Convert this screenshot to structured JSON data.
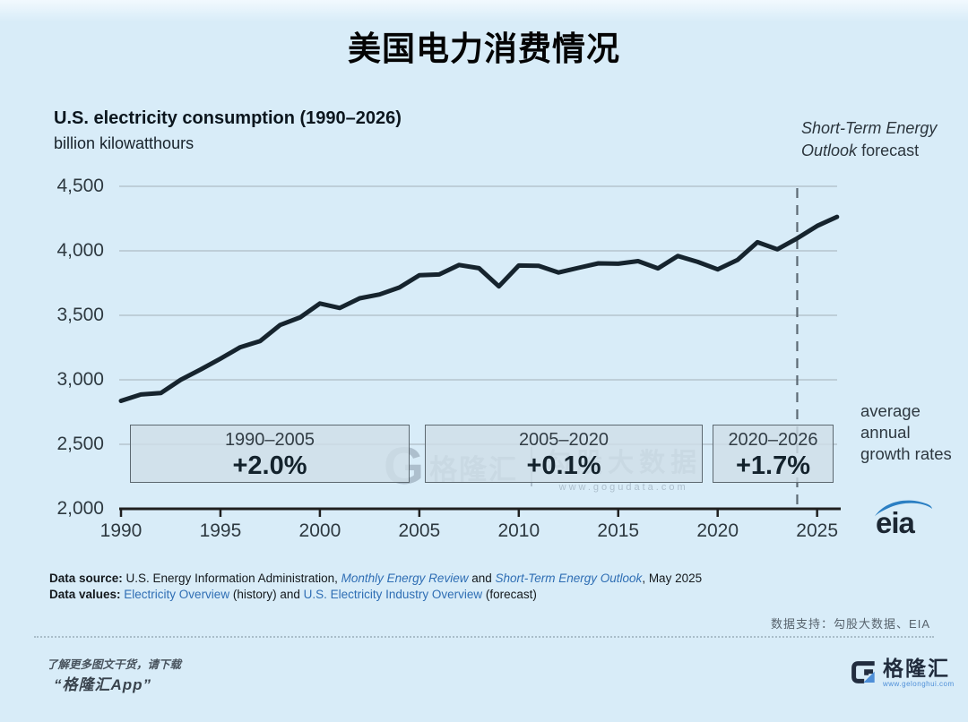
{
  "page": {
    "title": "美国电力消费情况",
    "bg_color": "#d8ecf8"
  },
  "chart": {
    "title": "U.S. electricity consumption (1990–2026)",
    "subtitle": "billion kilowatthours",
    "forecast_note_italic": "Short-Term Energy Outlook",
    "forecast_note_plain": "forecast",
    "avg_growth_note": "average annual growth rates",
    "y_ticks": [
      "4,500",
      "4,000",
      "3,500",
      "3,000",
      "2,500",
      "2,000"
    ],
    "x_ticks": [
      "1990",
      "1995",
      "2000",
      "2005",
      "2010",
      "2015",
      "2020",
      "2025"
    ],
    "growth_boxes": [
      {
        "range": "1990–2005",
        "rate": "+2.0%"
      },
      {
        "range": "2005–2020",
        "rate": "+0.1%"
      },
      {
        "range": "2020–2026",
        "rate": "+1.7%"
      }
    ],
    "line_color": "#16242e",
    "grid_color": "#b6c4cd",
    "axis_color": "#1f1f1f",
    "dash_color": "#5d6a74"
  },
  "chart_data": {
    "type": "line",
    "title": "U.S. electricity consumption (1990–2026)",
    "ylabel": "billion kilowatthours",
    "x": [
      1990,
      1991,
      1992,
      1993,
      1994,
      1995,
      1996,
      1997,
      1998,
      1999,
      2000,
      2001,
      2002,
      2003,
      2004,
      2005,
      2006,
      2007,
      2008,
      2009,
      2010,
      2011,
      2012,
      2013,
      2014,
      2015,
      2016,
      2017,
      2018,
      2019,
      2020,
      2021,
      2022,
      2023,
      2024,
      2025,
      2026
    ],
    "values": [
      2837,
      2886,
      2897,
      3000,
      3080,
      3164,
      3253,
      3301,
      3425,
      3483,
      3592,
      3557,
      3632,
      3662,
      3716,
      3811,
      3817,
      3890,
      3865,
      3724,
      3886,
      3883,
      3832,
      3868,
      3903,
      3900,
      3920,
      3864,
      3960,
      3914,
      3856,
      3930,
      4067,
      4012,
      4097,
      4193,
      4263
    ],
    "forecast_start_year": 2024,
    "forecast_source": "Short-Term Energy Outlook forecast",
    "ylim": [
      2000,
      4500
    ],
    "xlim": [
      1990,
      2026
    ],
    "y_tick_step": 500,
    "x_tick_step": 5,
    "grid": true,
    "legend": "none",
    "annotations": [
      {
        "range": "1990–2005",
        "avg_annual_growth": "+2.0%"
      },
      {
        "range": "2005–2020",
        "avg_annual_growth": "+0.1%"
      },
      {
        "range": "2020–2026",
        "avg_annual_growth": "+1.7%"
      }
    ]
  },
  "watermark": {
    "brand": "格隆汇",
    "name": "勾股大数据",
    "url": "www.gogudata.com"
  },
  "footer": {
    "source": {
      "label": "Data source:",
      "text1": " U.S. Energy Information Administration, ",
      "link1": "Monthly Energy Review",
      "text2": " and ",
      "link2": "Short-Term Energy Outlook",
      "text3": ", May 2025"
    },
    "values": {
      "label": "Data values: ",
      "link1": "Electricity Overview",
      "text1": " (history) and ",
      "link2": "U.S. Electricity Industry Overview",
      "text2": " (forecast)"
    },
    "support": "数据支持：勾股大数据、EIA",
    "promo_line1": "了解更多图文干货，请下载",
    "promo_line2": "“格隆汇App”",
    "eia_logo": "eia",
    "brand_name": "格隆汇",
    "brand_url": "www.gelonghui.com"
  }
}
